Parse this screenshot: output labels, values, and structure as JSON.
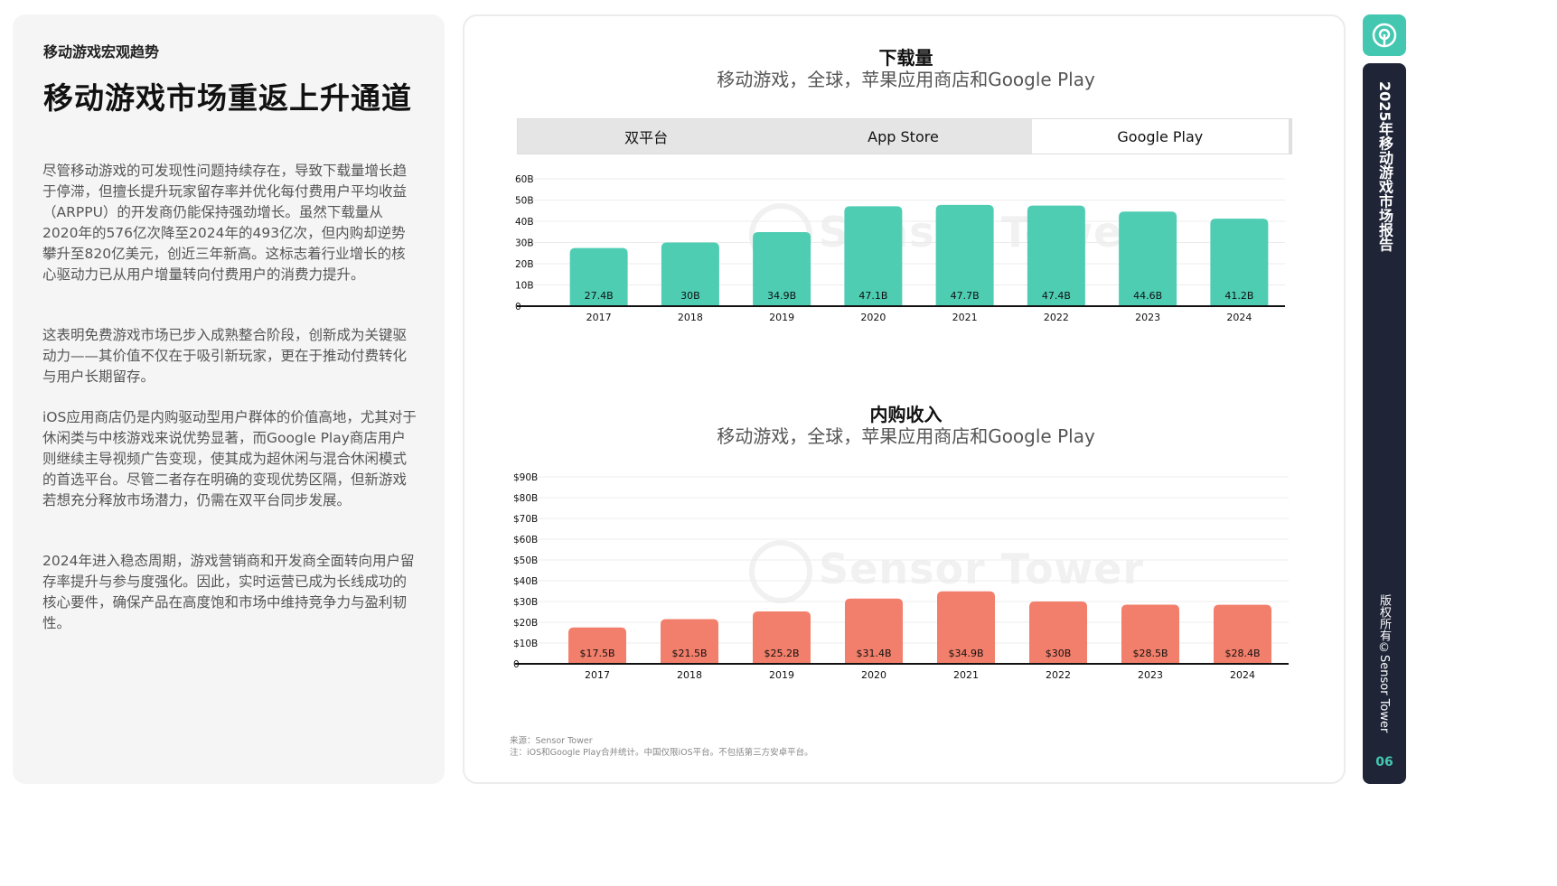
{
  "left": {
    "eyebrow": "移动游戏宏观趋势",
    "headline": "移动游戏市场重返上升通道",
    "paragraphs": [
      "尽管移动游戏的可发现性问题持续存在，导致下载量增长趋于停滞，但擅长提升玩家留存率并优化每付费用户平均收益（ARPPU）的开发商仍能保持强劲增长。虽然下载量从2020年的576亿次降至2024年的493亿次，但内购却逆势攀升至820亿美元，创近三年新高。这标志着行业增长的核心驱动力已从用户增量转向付费用户的消费力提升。",
      "这表明免费游戏市场已步入成熟整合阶段，创新成为关键驱动力——其价值不仅在于吸引新玩家，更在于推动付费转化与用户长期留存。",
      "iOS应用商店仍是内购驱动型用户群体的价值高地，尤其对于休闲类与中核游戏来说优势显著，而Google Play商店用户则继续主导视频广告变现，使其成为超休闲与混合休闲模式的首选平台。尽管二者存在明确的变现优势区隔，但新游戏若想充分释放市场潜力，仍需在双平台同步发展。",
      "2024年进入稳态周期，游戏营销商和开发商全面转向用户留存率提升与参与度强化。因此，实时运营已成为长线成功的核心要件，确保产品在高度饱和市场中维持竞争力与盈利韧性。"
    ]
  },
  "downloads": {
    "title": "下载量",
    "subtitle": "移动游戏，全球，苹果应用商店和Google Play",
    "tabs": [
      {
        "label": "双平台",
        "active": false
      },
      {
        "label": "App Store",
        "active": false
      },
      {
        "label": "Google Play",
        "active": true
      }
    ]
  },
  "iap": {
    "title": "内购收入",
    "subtitle": "移动游戏，全球，苹果应用商店和Google Play"
  },
  "watermark": "Sensor Tower",
  "source": "来源：Sensor Tower",
  "note": "注：iOS和Google Play合并统计。中国仅限iOS平台。不包括第三方安卓平台。",
  "rail": {
    "title": "2025年移动游戏市场报告",
    "copyright": "版权所有©Sensor Tower",
    "page": "06",
    "logo_icon": "sensor-tower-logo-icon"
  },
  "colors": {
    "teal": "#4ecdb3",
    "coral": "#f27f6b",
    "rail_dark": "#1f2537",
    "accent": "#44c7b1"
  },
  "chart_data": [
    {
      "type": "bar",
      "title": "下载量",
      "subtitle": "移动游戏，全球，苹果应用商店和Google Play",
      "categories": [
        "2017",
        "2018",
        "2019",
        "2020",
        "2021",
        "2022",
        "2023",
        "2024"
      ],
      "values": [
        27.4,
        30,
        34.9,
        47.1,
        47.7,
        47.4,
        44.6,
        41.2
      ],
      "data_labels": [
        "27.4B",
        "30B",
        "34.9B",
        "47.1B",
        "47.7B",
        "47.4B",
        "44.6B",
        "41.2B"
      ],
      "yticks": [
        "0",
        "10B",
        "20B",
        "30B",
        "40B",
        "50B",
        "60B"
      ],
      "ylim": [
        0,
        60
      ],
      "grid": true,
      "color": "#4ecdb3"
    },
    {
      "type": "bar",
      "title": "内购收入",
      "subtitle": "移动游戏，全球，苹果应用商店和Google Play",
      "categories": [
        "2017",
        "2018",
        "2019",
        "2020",
        "2021",
        "2022",
        "2023",
        "2024"
      ],
      "values": [
        17.5,
        21.5,
        25.2,
        31.4,
        34.9,
        30,
        28.5,
        28.4
      ],
      "data_labels": [
        "$17.5B",
        "$21.5B",
        "$25.2B",
        "$31.4B",
        "$34.9B",
        "$30B",
        "$28.5B",
        "$28.4B"
      ],
      "yticks": [
        "0",
        "$10B",
        "$20B",
        "$30B",
        "$40B",
        "$50B",
        "$60B",
        "$70B",
        "$80B",
        "$90B"
      ],
      "ylim": [
        0,
        90
      ],
      "grid": true,
      "color": "#f27f6b"
    }
  ]
}
